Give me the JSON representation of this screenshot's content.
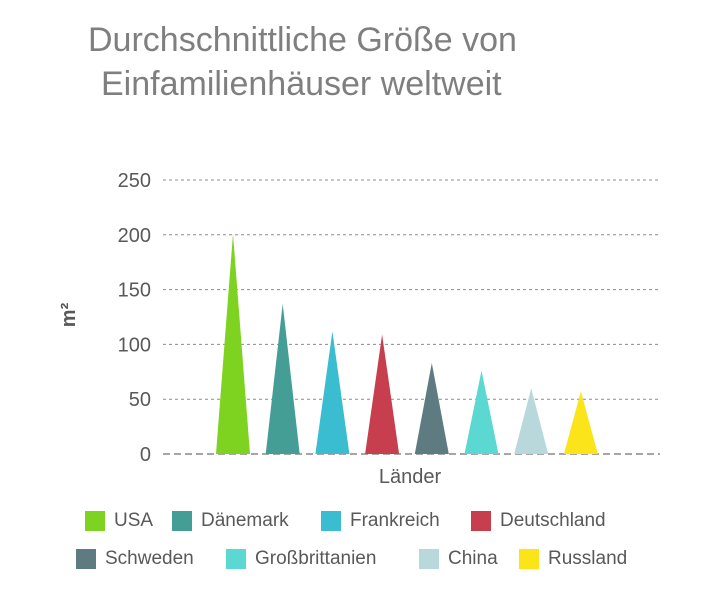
{
  "chart_data": {
    "type": "bar",
    "bar_shape": "triangle",
    "title_lines": [
      "Durchschnittliche Größe von",
      "Einfamilienhäuser weltweit"
    ],
    "xlabel": "Länder",
    "ylabel": "m²",
    "ylim": [
      0,
      250
    ],
    "yticks": [
      0,
      50,
      100,
      150,
      200,
      250
    ],
    "grid": true,
    "legend_position": "bottom",
    "categories": [
      "USA",
      "Dänemark",
      "Frankreich",
      "Deutschland",
      "Schweden",
      "Großbrittanien",
      "China",
      "Russland"
    ],
    "values": [
      201,
      137,
      112,
      109,
      83,
      76,
      60,
      57
    ],
    "colors": [
      "#7ed321",
      "#449e96",
      "#3bbdd1",
      "#c73e4e",
      "#5e7b81",
      "#5ad8d1",
      "#b8d8dc",
      "#fbe51a"
    ]
  }
}
